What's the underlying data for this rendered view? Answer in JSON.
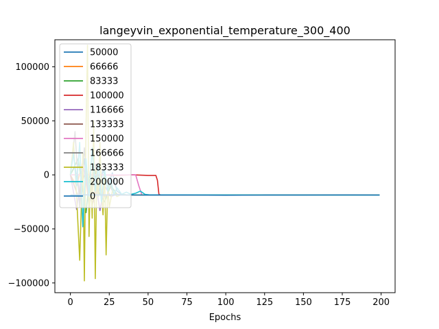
{
  "chart_data": {
    "type": "line",
    "title": "langeyvin_exponential_temperature_300_400",
    "xlabel": "Epochs",
    "ylabel": "",
    "xlim": [
      -10,
      209
    ],
    "ylim": [
      -109000,
      125000
    ],
    "xticks": [
      0,
      25,
      50,
      75,
      100,
      125,
      150,
      175,
      200
    ],
    "xtick_labels": [
      "0",
      "25",
      "50",
      "75",
      "100",
      "125",
      "150",
      "175",
      "200"
    ],
    "yticks": [
      -100000,
      -50000,
      0,
      50000,
      100000
    ],
    "ytick_labels": [
      "−100000",
      "−50000",
      "0",
      "50000",
      "100000"
    ],
    "grid": false,
    "legend_position": "top-left",
    "series": [
      {
        "name": "50000",
        "color": "#1f77b4",
        "points": [
          [
            0,
            0
          ],
          [
            3,
            8000
          ],
          [
            6,
            -20000
          ],
          [
            9,
            15000
          ],
          [
            12,
            -30000
          ],
          [
            15,
            10000
          ],
          [
            18,
            -20000
          ],
          [
            21,
            5000
          ],
          [
            24,
            -12000
          ],
          [
            27,
            2000
          ],
          [
            30,
            -15000
          ],
          [
            33,
            -18000
          ],
          [
            36,
            -18500
          ],
          [
            40,
            -18500
          ],
          [
            60,
            -18600
          ],
          [
            100,
            -18700
          ],
          [
            150,
            -18600
          ],
          [
            199,
            -18700
          ]
        ]
      },
      {
        "name": "66666",
        "color": "#ff7f0e",
        "points": [
          [
            0,
            0
          ],
          [
            4,
            -10000
          ],
          [
            8,
            12000
          ],
          [
            12,
            -25000
          ],
          [
            16,
            5000
          ],
          [
            20,
            -15000
          ],
          [
            24,
            -5000
          ],
          [
            28,
            -17000
          ],
          [
            32,
            -18500
          ],
          [
            40,
            -18600
          ],
          [
            199,
            -18700
          ]
        ]
      },
      {
        "name": "83333",
        "color": "#2ca02c",
        "points": [
          [
            0,
            0
          ],
          [
            5,
            15000
          ],
          [
            10,
            -35000
          ],
          [
            14,
            20000
          ],
          [
            18,
            -15000
          ],
          [
            22,
            -25000
          ],
          [
            26,
            -10000
          ],
          [
            30,
            -18000
          ],
          [
            36,
            -18500
          ],
          [
            199,
            -18700
          ]
        ]
      },
      {
        "name": "100000",
        "color": "#d62728",
        "points": [
          [
            0,
            0
          ],
          [
            10,
            0
          ],
          [
            20,
            0
          ],
          [
            30,
            -500
          ],
          [
            40,
            0
          ],
          [
            50,
            -500
          ],
          [
            55,
            -500
          ],
          [
            56,
            -5000
          ],
          [
            57,
            -18000
          ],
          [
            58,
            -18500
          ],
          [
            70,
            -18700
          ],
          [
            199,
            -18700
          ]
        ]
      },
      {
        "name": "116666",
        "color": "#9467bd",
        "points": [
          [
            0,
            0
          ],
          [
            4,
            -32000
          ],
          [
            8,
            10000
          ],
          [
            12,
            -20000
          ],
          [
            16,
            -5000
          ],
          [
            19,
            -33000
          ],
          [
            22,
            -10000
          ],
          [
            26,
            -20000
          ],
          [
            30,
            -18000
          ],
          [
            35,
            -18500
          ],
          [
            199,
            -18700
          ]
        ]
      },
      {
        "name": "133333",
        "color": "#8c564b",
        "points": [
          [
            0,
            0
          ],
          [
            5,
            -20000
          ],
          [
            10,
            5000
          ],
          [
            14,
            -28000
          ],
          [
            18,
            -8000
          ],
          [
            22,
            -20000
          ],
          [
            27,
            -18500
          ],
          [
            199,
            -18700
          ]
        ]
      },
      {
        "name": "150000",
        "color": "#e377c2",
        "points": [
          [
            0,
            0
          ],
          [
            10,
            0
          ],
          [
            20,
            0
          ],
          [
            30,
            0
          ],
          [
            40,
            0
          ],
          [
            42,
            0
          ],
          [
            44,
            -10000
          ],
          [
            46,
            -18500
          ],
          [
            60,
            -18700
          ],
          [
            199,
            -18700
          ]
        ]
      },
      {
        "name": "166666",
        "color": "#7f7f7f",
        "points": [
          [
            0,
            0
          ],
          [
            3,
            40000
          ],
          [
            6,
            -30000
          ],
          [
            9,
            25000
          ],
          [
            12,
            -25000
          ],
          [
            16,
            10000
          ],
          [
            20,
            -15000
          ],
          [
            24,
            -5000
          ],
          [
            28,
            -18000
          ],
          [
            33,
            -18500
          ],
          [
            199,
            -18700
          ]
        ]
      },
      {
        "name": "183333",
        "color": "#bcbd22",
        "points": [
          [
            0,
            0
          ],
          [
            2,
            30000
          ],
          [
            4,
            -20000
          ],
          [
            6,
            -79000
          ],
          [
            8,
            20000
          ],
          [
            9,
            -98000
          ],
          [
            10,
            40000
          ],
          [
            11,
            120000
          ],
          [
            12,
            -57000
          ],
          [
            13,
            10000
          ],
          [
            14,
            -40000
          ],
          [
            15,
            50000
          ],
          [
            16,
            -96000
          ],
          [
            17,
            5000
          ],
          [
            18,
            -20000
          ],
          [
            19,
            30000
          ],
          [
            20,
            -15000
          ],
          [
            21,
            -37000
          ],
          [
            22,
            5000
          ],
          [
            23,
            -74000
          ],
          [
            24,
            -10000
          ],
          [
            25,
            -30000
          ],
          [
            27,
            -15000
          ],
          [
            30,
            -20000
          ],
          [
            33,
            -18000
          ],
          [
            36,
            -18500
          ],
          [
            199,
            -18700
          ]
        ]
      },
      {
        "name": "200000",
        "color": "#17becf",
        "points": [
          [
            0,
            0
          ],
          [
            2,
            20000
          ],
          [
            4,
            -10000
          ],
          [
            6,
            30000
          ],
          [
            8,
            -48000
          ],
          [
            10,
            15000
          ],
          [
            12,
            -20000
          ],
          [
            14,
            25000
          ],
          [
            16,
            -15000
          ],
          [
            18,
            10000
          ],
          [
            20,
            -25000
          ],
          [
            22,
            5000
          ],
          [
            24,
            -15000
          ],
          [
            26,
            -5000
          ],
          [
            28,
            -18000
          ],
          [
            30,
            -12000
          ],
          [
            33,
            -18000
          ],
          [
            36,
            -16000
          ],
          [
            39,
            -18000
          ],
          [
            42,
            -17000
          ],
          [
            45,
            -15000
          ],
          [
            48,
            -18000
          ],
          [
            51,
            -18500
          ],
          [
            55,
            -18500
          ],
          [
            199,
            -18700
          ]
        ]
      },
      {
        "name": "0",
        "color": "#1f77b4",
        "points": [
          [
            0,
            -18500
          ],
          [
            10,
            -18500
          ],
          [
            20,
            -18600
          ],
          [
            30,
            -18500
          ],
          [
            40,
            -18600
          ],
          [
            50,
            -18700
          ],
          [
            75,
            -18700
          ],
          [
            100,
            -18800
          ],
          [
            125,
            -18700
          ],
          [
            150,
            -18700
          ],
          [
            175,
            -18600
          ],
          [
            199,
            -18700
          ]
        ]
      }
    ]
  }
}
